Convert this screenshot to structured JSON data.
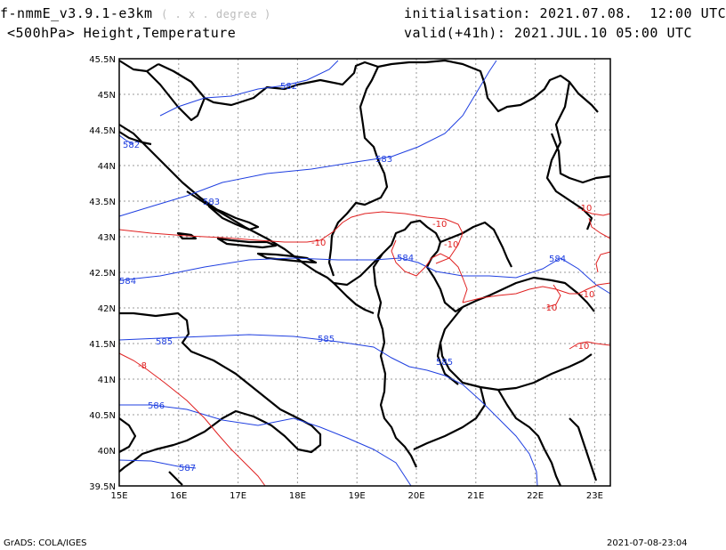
{
  "header": {
    "model": "f-nmmE_v3.9.1-e3km",
    "proj_note": "( . x . degree )",
    "level": "<500hPa> Height,Temperature",
    "init": "initialisation: 2021.07.08.  12:00 UTC",
    "valid": "valid(+41h): 2021.JUL.10 05:00 UTC"
  },
  "axes": {
    "lon_labels": [
      "15E",
      "16E",
      "17E",
      "18E",
      "19E",
      "20E",
      "21E",
      "22E",
      "23E"
    ],
    "lat_labels": [
      "45.5N",
      "45N",
      "44.5N",
      "44N",
      "43.5N",
      "43N",
      "42.5N",
      "42N",
      "41.5N",
      "41N",
      "40.5N",
      "40N",
      "39.5N"
    ]
  },
  "colors": {
    "height": "#1f3fe0",
    "temperature": "#e02020",
    "coast": "#000000",
    "grid": "#9a9a9a"
  },
  "contour_labels": {
    "height": [
      "582",
      "582",
      "583",
      "583",
      "584",
      "584",
      "584",
      "585",
      "585",
      "585",
      "586",
      "587"
    ],
    "temperature": [
      "-10",
      "-10",
      "-10",
      "-10",
      "-10",
      "-10",
      "-10",
      "-8"
    ]
  },
  "footer": {
    "left": "GrADS: COLA/IGES",
    "right": "2021-07-08-23:04"
  }
}
